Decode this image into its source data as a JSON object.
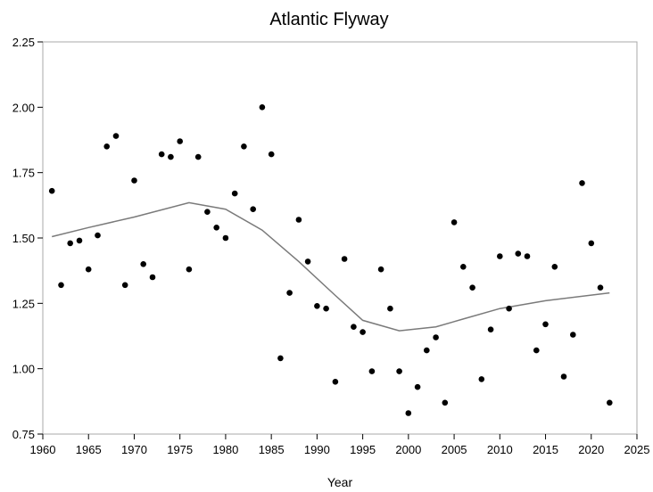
{
  "chart_data": {
    "type": "scatter",
    "title": "Atlantic Flyway",
    "xlabel": "Year",
    "ylabel": "",
    "xlim": [
      1960,
      2025
    ],
    "ylim": [
      0.75,
      2.25
    ],
    "xticks": [
      "1960",
      "1965",
      "1970",
      "1975",
      "1980",
      "1985",
      "1990",
      "1995",
      "2000",
      "2005",
      "2010",
      "2015",
      "2020",
      "2025"
    ],
    "yticks": [
      "0.75",
      "1.00",
      "1.25",
      "1.50",
      "1.75",
      "2.00",
      "2.25"
    ],
    "grid": false,
    "points": [
      [
        1961,
        1.68
      ],
      [
        1962,
        1.32
      ],
      [
        1963,
        1.48
      ],
      [
        1964,
        1.49
      ],
      [
        1965,
        1.38
      ],
      [
        1966,
        1.51
      ],
      [
        1967,
        1.85
      ],
      [
        1968,
        1.89
      ],
      [
        1969,
        1.32
      ],
      [
        1970,
        1.72
      ],
      [
        1971,
        1.4
      ],
      [
        1972,
        1.35
      ],
      [
        1973,
        1.82
      ],
      [
        1974,
        1.81
      ],
      [
        1975,
        1.87
      ],
      [
        1976,
        1.38
      ],
      [
        1977,
        1.81
      ],
      [
        1978,
        1.6
      ],
      [
        1979,
        1.54
      ],
      [
        1980,
        1.5
      ],
      [
        1981,
        1.67
      ],
      [
        1982,
        1.85
      ],
      [
        1983,
        1.61
      ],
      [
        1984,
        2.0
      ],
      [
        1985,
        1.82
      ],
      [
        1986,
        1.04
      ],
      [
        1987,
        1.29
      ],
      [
        1988,
        1.57
      ],
      [
        1989,
        1.41
      ],
      [
        1990,
        1.24
      ],
      [
        1991,
        1.23
      ],
      [
        1992,
        0.95
      ],
      [
        1993,
        1.42
      ],
      [
        1994,
        1.16
      ],
      [
        1995,
        1.14
      ],
      [
        1996,
        0.99
      ],
      [
        1997,
        1.38
      ],
      [
        1998,
        1.23
      ],
      [
        1999,
        0.99
      ],
      [
        2000,
        0.83
      ],
      [
        2001,
        0.93
      ],
      [
        2002,
        1.07
      ],
      [
        2003,
        1.12
      ],
      [
        2004,
        0.87
      ],
      [
        2005,
        1.56
      ],
      [
        2006,
        1.39
      ],
      [
        2007,
        1.31
      ],
      [
        2008,
        0.96
      ],
      [
        2009,
        1.15
      ],
      [
        2010,
        1.43
      ],
      [
        2011,
        1.23
      ],
      [
        2012,
        1.44
      ],
      [
        2013,
        1.43
      ],
      [
        2014,
        1.07
      ],
      [
        2015,
        1.17
      ],
      [
        2016,
        1.39
      ],
      [
        2017,
        0.97
      ],
      [
        2018,
        1.13
      ],
      [
        2019,
        1.71
      ],
      [
        2020,
        1.48
      ],
      [
        2021,
        1.31
      ],
      [
        2022,
        0.87
      ]
    ],
    "trend": [
      [
        1961,
        1.505
      ],
      [
        1965,
        1.54
      ],
      [
        1970,
        1.58
      ],
      [
        1976,
        1.635
      ],
      [
        1980,
        1.61
      ],
      [
        1984,
        1.53
      ],
      [
        1988,
        1.41
      ],
      [
        1992,
        1.28
      ],
      [
        1995,
        1.185
      ],
      [
        1999,
        1.145
      ],
      [
        2003,
        1.16
      ],
      [
        2006,
        1.19
      ],
      [
        2010,
        1.23
      ],
      [
        2015,
        1.26
      ],
      [
        2022,
        1.29
      ]
    ]
  }
}
